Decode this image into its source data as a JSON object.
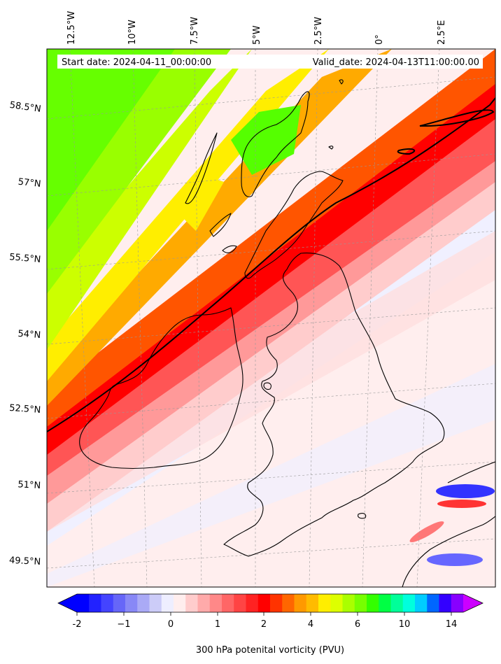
{
  "map": {
    "start_date": "Start date: 2024-04-11_00:00:00",
    "valid_date": "Valid_date: 2024-04-13T11:00:00.00",
    "lon_labels": [
      "12.5°W",
      "10°W",
      "7.5°W",
      "5°W",
      "2.5°W",
      "0°",
      "2.5°E"
    ],
    "lat_labels": [
      "58.5°N",
      "57°N",
      "55.5°N",
      "54°N",
      "52.5°N",
      "51°N",
      "49.5°N"
    ],
    "contour_line": "2 PVU"
  },
  "colorbar": {
    "title": "300 hPa potenital vorticity (PVU)",
    "tick_labels": [
      "-2",
      "−1",
      "0",
      "1",
      "2",
      "4",
      "6",
      "10",
      "14"
    ],
    "colors": [
      "#0000ff",
      "#2222ff",
      "#4444ff",
      "#6666f8",
      "#8888f6",
      "#aaaaf6",
      "#ccccf8",
      "#eeeeff",
      "#ffeeee",
      "#ffcccc",
      "#ffaaaa",
      "#ff8888",
      "#ff6666",
      "#ff4444",
      "#ff2222",
      "#ff0000",
      "#ff3300",
      "#ff6600",
      "#ff9900",
      "#ffbb00",
      "#ffee00",
      "#ddff00",
      "#aaff00",
      "#77ff00",
      "#33ff00",
      "#00ff44",
      "#00ff99",
      "#00ffdd",
      "#00ccff",
      "#0066ff",
      "#3300ff",
      "#8800ff"
    ],
    "under_color": "#0000ff",
    "over_color": "#cc00ff"
  }
}
